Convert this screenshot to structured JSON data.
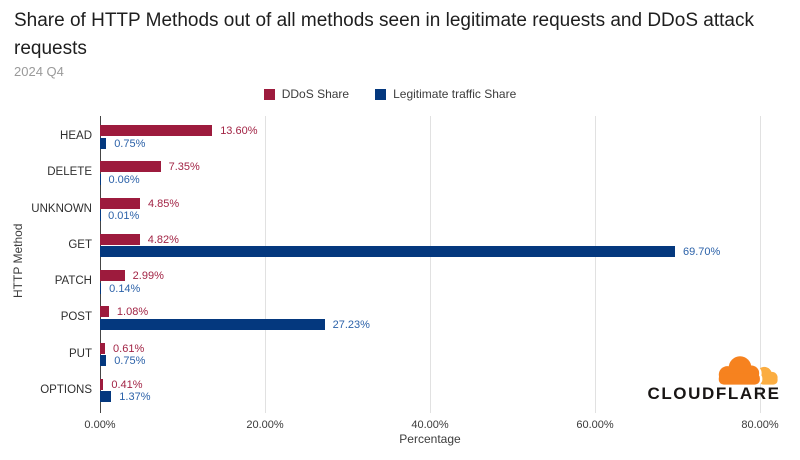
{
  "header": {
    "title": "Share of HTTP Methods out of all methods seen in legitimate requests and DDoS attack requests",
    "subtitle": "2024 Q4"
  },
  "chart_data": {
    "type": "bar",
    "orientation": "horizontal",
    "title": "Share of HTTP Methods out of all methods seen in legitimate requests and DDoS attack requests",
    "subtitle": "2024 Q4",
    "categories": [
      "HEAD",
      "DELETE",
      "UNKNOWN",
      "GET",
      "PATCH",
      "POST",
      "PUT",
      "OPTIONS"
    ],
    "series": [
      {
        "name": "DDoS Share",
        "color": "#9D1B3D",
        "label_color": "#A22445",
        "values": [
          13.6,
          7.35,
          4.85,
          4.82,
          2.99,
          1.08,
          0.61,
          0.41
        ]
      },
      {
        "name": "Legitimate traffic Share",
        "color": "#04387E",
        "label_color": "#2C62A9",
        "values": [
          0.75,
          0.06,
          0.01,
          69.7,
          0.14,
          27.23,
          0.75,
          1.37
        ]
      }
    ],
    "xlabel": "Percentage",
    "ylabel": "HTTP Method",
    "xlim": [
      0,
      80
    ],
    "xticks": [
      0,
      20,
      40,
      60,
      80
    ],
    "tick_format": "0.00%",
    "grid": "vertical",
    "legend_position": "top-center"
  },
  "branding": {
    "logo_text": "CLOUDFLARE",
    "cloud_color_primary": "#F6821F",
    "cloud_color_secondary": "#FBAD41"
  }
}
